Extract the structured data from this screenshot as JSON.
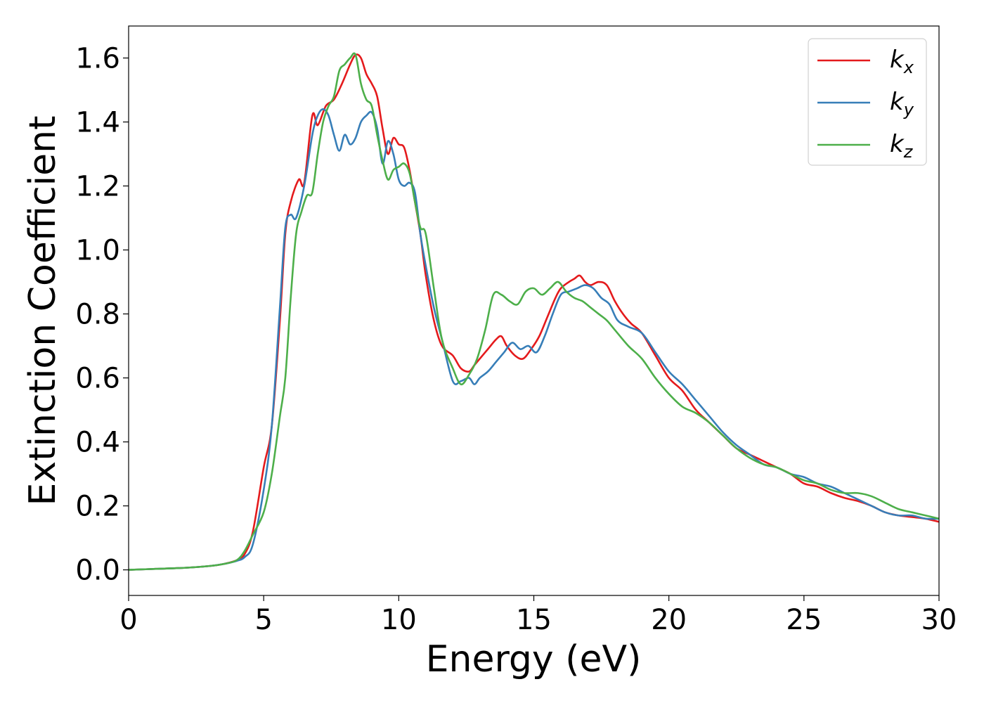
{
  "chart_data": {
    "type": "line",
    "title": "",
    "xlabel": "Energy (eV)",
    "ylabel": "Extinction Coefficient",
    "xlim": [
      0,
      30
    ],
    "ylim": [
      -0.08,
      1.7
    ],
    "xticks": [
      "0",
      "5",
      "10",
      "15",
      "20",
      "25",
      "30"
    ],
    "yticks": [
      "0.0",
      "0.2",
      "0.4",
      "0.6",
      "0.8",
      "1.0",
      "1.2",
      "1.4",
      "1.6"
    ],
    "grid": false,
    "legend": "top-right",
    "series": [
      {
        "name": "k",
        "subscript": "x",
        "color": "#e41a1c",
        "x": [
          0,
          1,
          2,
          3,
          3.5,
          4,
          4.3,
          4.6,
          5,
          5.3,
          5.6,
          5.8,
          6.0,
          6.3,
          6.5,
          6.8,
          7.0,
          7.3,
          7.6,
          7.9,
          8.2,
          8.4,
          8.6,
          8.8,
          9.0,
          9.2,
          9.4,
          9.6,
          9.8,
          10.0,
          10.2,
          10.4,
          10.6,
          10.8,
          11.0,
          11.3,
          11.6,
          12.0,
          12.3,
          12.6,
          12.8,
          13.0,
          13.3,
          13.6,
          13.8,
          14.0,
          14.3,
          14.6,
          14.9,
          15.2,
          15.5,
          15.8,
          16.0,
          16.3,
          16.5,
          16.7,
          16.9,
          17.1,
          17.4,
          17.7,
          18.0,
          18.3,
          18.6,
          19.0,
          19.5,
          20.0,
          20.5,
          21.0,
          21.5,
          22.0,
          22.5,
          23.0,
          23.5,
          24.0,
          24.5,
          25.0,
          25.5,
          26.0,
          26.5,
          27.0,
          27.5,
          28.0,
          28.5,
          29.0,
          29.5,
          30.0
        ],
        "y": [
          0.0,
          0.003,
          0.006,
          0.012,
          0.018,
          0.03,
          0.05,
          0.12,
          0.32,
          0.45,
          0.78,
          1.05,
          1.15,
          1.22,
          1.21,
          1.42,
          1.39,
          1.45,
          1.47,
          1.52,
          1.58,
          1.61,
          1.6,
          1.55,
          1.52,
          1.48,
          1.38,
          1.3,
          1.35,
          1.33,
          1.32,
          1.25,
          1.15,
          1.05,
          0.92,
          0.78,
          0.7,
          0.67,
          0.63,
          0.62,
          0.64,
          0.66,
          0.69,
          0.72,
          0.73,
          0.7,
          0.67,
          0.66,
          0.69,
          0.73,
          0.79,
          0.85,
          0.88,
          0.9,
          0.91,
          0.92,
          0.9,
          0.89,
          0.9,
          0.89,
          0.84,
          0.8,
          0.77,
          0.74,
          0.67,
          0.6,
          0.56,
          0.5,
          0.46,
          0.42,
          0.38,
          0.36,
          0.34,
          0.32,
          0.3,
          0.27,
          0.26,
          0.24,
          0.225,
          0.215,
          0.2,
          0.18,
          0.17,
          0.165,
          0.16,
          0.15
        ]
      },
      {
        "name": "k",
        "subscript": "y",
        "color": "#377eb8",
        "x": [
          0,
          1,
          2,
          3,
          3.5,
          4,
          4.3,
          4.6,
          5,
          5.3,
          5.6,
          5.8,
          6.0,
          6.2,
          6.5,
          6.8,
          7.0,
          7.2,
          7.4,
          7.6,
          7.8,
          8.0,
          8.2,
          8.4,
          8.6,
          8.8,
          9.0,
          9.2,
          9.4,
          9.6,
          9.8,
          10.0,
          10.2,
          10.4,
          10.6,
          10.8,
          11.0,
          11.3,
          11.6,
          12.0,
          12.3,
          12.6,
          12.8,
          13.0,
          13.3,
          13.6,
          13.9,
          14.2,
          14.5,
          14.8,
          15.1,
          15.4,
          15.7,
          16.0,
          16.3,
          16.6,
          16.9,
          17.2,
          17.5,
          17.8,
          18.1,
          18.5,
          19.0,
          19.5,
          20.0,
          20.5,
          21.0,
          21.5,
          22.0,
          22.5,
          23.0,
          23.5,
          24.0,
          24.5,
          25.0,
          25.5,
          26.0,
          26.5,
          27.0,
          27.5,
          28.0,
          28.5,
          29.0,
          29.5,
          30.0
        ],
        "y": [
          0.0,
          0.003,
          0.006,
          0.012,
          0.018,
          0.028,
          0.04,
          0.08,
          0.25,
          0.45,
          0.82,
          1.07,
          1.11,
          1.1,
          1.2,
          1.36,
          1.42,
          1.44,
          1.42,
          1.36,
          1.31,
          1.36,
          1.33,
          1.35,
          1.4,
          1.42,
          1.43,
          1.38,
          1.27,
          1.34,
          1.3,
          1.22,
          1.2,
          1.21,
          1.18,
          1.05,
          0.95,
          0.82,
          0.72,
          0.59,
          0.59,
          0.6,
          0.58,
          0.6,
          0.62,
          0.65,
          0.68,
          0.71,
          0.69,
          0.7,
          0.68,
          0.73,
          0.8,
          0.86,
          0.87,
          0.88,
          0.89,
          0.88,
          0.85,
          0.83,
          0.78,
          0.76,
          0.74,
          0.68,
          0.62,
          0.58,
          0.53,
          0.48,
          0.43,
          0.39,
          0.36,
          0.33,
          0.32,
          0.3,
          0.29,
          0.27,
          0.26,
          0.24,
          0.22,
          0.2,
          0.18,
          0.17,
          0.17,
          0.16,
          0.16
        ]
      },
      {
        "name": "k",
        "subscript": "z",
        "color": "#4daf4a",
        "x": [
          0,
          1,
          2,
          3,
          3.5,
          4,
          4.3,
          4.6,
          5,
          5.3,
          5.6,
          5.8,
          6.0,
          6.2,
          6.4,
          6.6,
          6.8,
          7.0,
          7.2,
          7.4,
          7.6,
          7.8,
          8.0,
          8.2,
          8.4,
          8.6,
          8.8,
          9.0,
          9.2,
          9.4,
          9.6,
          9.8,
          10.0,
          10.2,
          10.4,
          10.6,
          10.8,
          11.0,
          11.3,
          11.6,
          12.0,
          12.3,
          12.6,
          12.9,
          13.2,
          13.5,
          13.8,
          14.1,
          14.4,
          14.7,
          15.0,
          15.3,
          15.6,
          15.9,
          16.2,
          16.5,
          16.8,
          17.1,
          17.4,
          17.7,
          18.0,
          18.5,
          19.0,
          19.5,
          20.0,
          20.5,
          21.0,
          21.5,
          22.0,
          22.5,
          23.0,
          23.5,
          24.0,
          24.5,
          25.0,
          25.5,
          26.0,
          26.5,
          27.0,
          27.5,
          28.0,
          28.5,
          29.0,
          29.5,
          30.0
        ],
        "y": [
          0.0,
          0.003,
          0.006,
          0.012,
          0.018,
          0.03,
          0.06,
          0.11,
          0.18,
          0.3,
          0.48,
          0.6,
          0.85,
          1.05,
          1.12,
          1.17,
          1.18,
          1.3,
          1.4,
          1.45,
          1.48,
          1.56,
          1.58,
          1.6,
          1.61,
          1.52,
          1.47,
          1.45,
          1.36,
          1.28,
          1.22,
          1.25,
          1.26,
          1.27,
          1.24,
          1.15,
          1.07,
          1.05,
          0.88,
          0.72,
          0.63,
          0.58,
          0.61,
          0.66,
          0.75,
          0.86,
          0.86,
          0.84,
          0.83,
          0.87,
          0.88,
          0.86,
          0.88,
          0.9,
          0.87,
          0.85,
          0.84,
          0.82,
          0.8,
          0.78,
          0.75,
          0.7,
          0.66,
          0.6,
          0.55,
          0.51,
          0.49,
          0.46,
          0.42,
          0.38,
          0.35,
          0.33,
          0.32,
          0.3,
          0.28,
          0.27,
          0.25,
          0.24,
          0.24,
          0.23,
          0.21,
          0.19,
          0.18,
          0.17,
          0.16
        ]
      }
    ]
  }
}
